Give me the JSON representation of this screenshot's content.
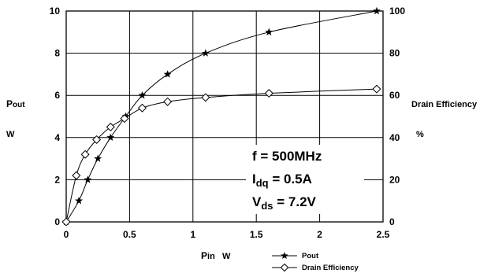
{
  "chart_data": {
    "type": "line",
    "x": [
      0,
      0.1,
      0.17,
      0.25,
      0.35,
      0.47,
      0.6,
      0.8,
      1.1,
      1.6,
      2.45
    ],
    "xlim": [
      0,
      2.5
    ],
    "x_ticks": [
      "0",
      "0.5",
      "1",
      "1.5",
      "2",
      "2.5"
    ],
    "xlabel": {
      "main": "P",
      "sub": "in",
      "unit": "W"
    },
    "ylim_left": [
      0,
      10
    ],
    "y_ticks_left": [
      "0",
      "2",
      "4",
      "6",
      "8",
      "10"
    ],
    "ylabel_left": {
      "main": "P",
      "sub": "out",
      "unit": "W"
    },
    "ylim_right": [
      0,
      100
    ],
    "y_ticks_right": [
      "0",
      "20",
      "40",
      "60",
      "80",
      "100"
    ],
    "ylabel_right": {
      "name": "Drain Efficiency",
      "unit": "%"
    },
    "grid": true,
    "legend_position": "bottom-right",
    "series": [
      {
        "name": "Pout",
        "axis": "left",
        "marker": "star",
        "x": [
          0,
          0.1,
          0.17,
          0.25,
          0.35,
          0.47,
          0.6,
          0.8,
          1.1,
          1.6,
          2.45
        ],
        "y": [
          0,
          1,
          2,
          3,
          4,
          5,
          6,
          7,
          8,
          9,
          10
        ]
      },
      {
        "name": "Drain Efficiency",
        "axis": "right",
        "marker": "diamond",
        "x": [
          0,
          0.08,
          0.15,
          0.24,
          0.35,
          0.46,
          0.6,
          0.8,
          1.1,
          1.6,
          2.45
        ],
        "y": [
          0,
          22,
          32,
          39,
          45,
          49,
          54,
          57,
          59,
          61,
          63
        ]
      }
    ],
    "annotations": [
      {
        "main": "f = 500MHz",
        "sub": "",
        "rest": ""
      },
      {
        "main": "I",
        "sub": "dq",
        "rest": " = 0.5A"
      },
      {
        "main": "V",
        "sub": "ds",
        "rest": " = 7.2V"
      }
    ]
  }
}
